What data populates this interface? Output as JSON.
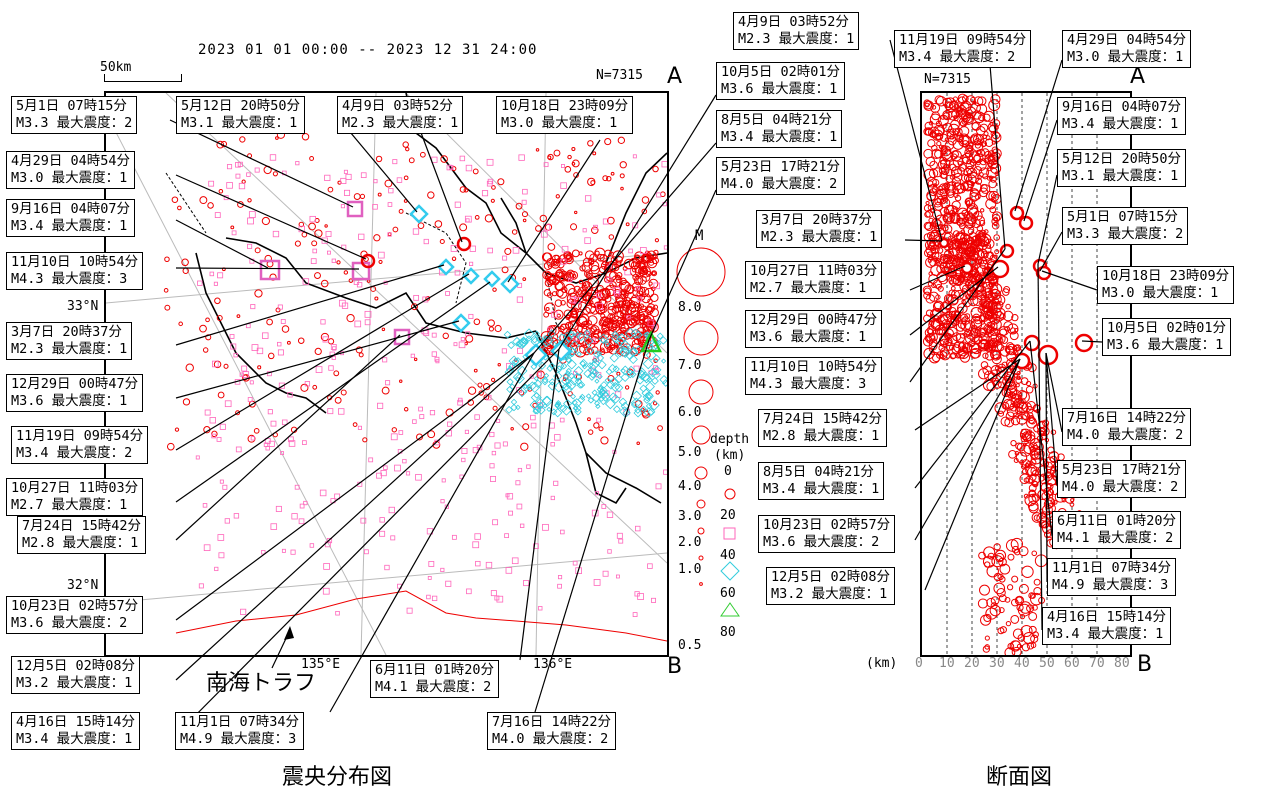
{
  "date_range": "2023 01 01 00:00 -- 2023 12 31 24:00",
  "scale_label": "50km",
  "map_count": "N=7315",
  "section_count": "N=7315",
  "end_a": "A",
  "end_b": "B",
  "lat_33": "33°N",
  "lat_32": "32°N",
  "lon_135": "135°E",
  "lon_136": "136°E",
  "trough_label": "南海トラフ",
  "caption_map": "震央分布図",
  "caption_section": "断面図",
  "legend": {
    "magnitude_title": "M",
    "magnitudes": [
      "8.0",
      "7.0",
      "6.0",
      "5.0",
      "4.0",
      "3.0",
      "2.0",
      "1.0",
      "0.5"
    ],
    "depth_title": "depth",
    "depth_unit": "(km)",
    "depths": [
      "0",
      "20",
      "40",
      "60",
      "80"
    ]
  },
  "section_axis": {
    "unit": "(km)",
    "ticks": [
      "0",
      "10",
      "20",
      "30",
      "40",
      "50",
      "60",
      "70",
      "80"
    ]
  },
  "map_callouts": [
    {
      "date": "5月1日 07時15分",
      "mag": "M3.3 最大震度：2"
    },
    {
      "date": "5月12日 20時50分",
      "mag": "M3.1 最大震度：1"
    },
    {
      "date": "4月9日 03時52分",
      "mag": "M2.3 最大震度：1"
    },
    {
      "date": "10月18日 23時09分",
      "mag": "M3.0 最大震度：1"
    },
    {
      "date": "10月5日 02時01分",
      "mag": "M3.6 最大震度：1"
    },
    {
      "date": "8月5日 04時21分",
      "mag": "M3.4 最大震度：1"
    },
    {
      "date": "5月23日 17時21分",
      "mag": "M4.0 最大震度：2"
    },
    {
      "date": "4月29日 04時54分",
      "mag": "M3.0 最大震度：1"
    },
    {
      "date": "9月16日 04時07分",
      "mag": "M3.4 最大震度：1"
    },
    {
      "date": "11月10日 10時54分",
      "mag": "M4.3 最大震度：3"
    },
    {
      "date": "3月7日 20時37分",
      "mag": "M2.3 最大震度：1"
    },
    {
      "date": "12月29日 00時47分",
      "mag": "M3.6 最大震度：1"
    },
    {
      "date": "11月19日 09時54分",
      "mag": "M3.4 最大震度：2"
    },
    {
      "date": "10月27日 11時03分",
      "mag": "M2.7 最大震度：1"
    },
    {
      "date": "7月24日 15時42分",
      "mag": "M2.8 最大震度：1"
    },
    {
      "date": "10月23日 02時57分",
      "mag": "M3.6 最大震度：2"
    },
    {
      "date": "12月5日 02時08分",
      "mag": "M3.2 最大震度：1"
    },
    {
      "date": "4月16日 15時14分",
      "mag": "M3.4 最大震度：1"
    },
    {
      "date": "6月11日 01時20分",
      "mag": "M4.1 最大震度：2"
    },
    {
      "date": "11月1日 07時34分",
      "mag": "M4.9 最大震度：3"
    },
    {
      "date": "7月16日 14時22分",
      "mag": "M4.0 最大震度：2"
    }
  ],
  "section_callouts": [
    {
      "date": "4月9日 03時52分",
      "mag": "M2.3 最大震度：1"
    },
    {
      "date": "11月19日 09時54分",
      "mag": "M3.4 最大震度：2"
    },
    {
      "date": "4月29日 04時54分",
      "mag": "M3.0 最大震度：1"
    },
    {
      "date": "9月16日 04時07分",
      "mag": "M3.4 最大震度：1"
    },
    {
      "date": "5月12日 20時50分",
      "mag": "M3.1 最大震度：1"
    },
    {
      "date": "5月1日 07時15分",
      "mag": "M3.3 最大震度：2"
    },
    {
      "date": "3月7日 20時37分",
      "mag": "M2.3 最大震度：1"
    },
    {
      "date": "10月27日 11時03分",
      "mag": "M2.7 最大震度：1"
    },
    {
      "date": "10月18日 23時09分",
      "mag": "M3.0 最大震度：1"
    },
    {
      "date": "12月29日 00時47分",
      "mag": "M3.6 最大震度：1"
    },
    {
      "date": "10月5日 02時01分",
      "mag": "M3.6 最大震度：1"
    },
    {
      "date": "11月10日 10時54分",
      "mag": "M4.3 最大震度：3"
    },
    {
      "date": "7月24日 15時42分",
      "mag": "M2.8 最大震度：1"
    },
    {
      "date": "7月16日 14時22分",
      "mag": "M4.0 最大震度：2"
    },
    {
      "date": "8月5日 04時21分",
      "mag": "M3.4 最大震度：1"
    },
    {
      "date": "5月23日 17時21分",
      "mag": "M4.0 最大震度：2"
    },
    {
      "date": "10月23日 02時57分",
      "mag": "M3.6 最大震度：2"
    },
    {
      "date": "6月11日 01時20分",
      "mag": "M4.1 最大震度：2"
    },
    {
      "date": "12月5日 02時08分",
      "mag": "M3.2 最大震度：1"
    },
    {
      "date": "11月1日 07時34分",
      "mag": "M4.9 最大震度：3"
    },
    {
      "date": "4月16日 15時14分",
      "mag": "M3.4 最大震度：1"
    }
  ]
}
